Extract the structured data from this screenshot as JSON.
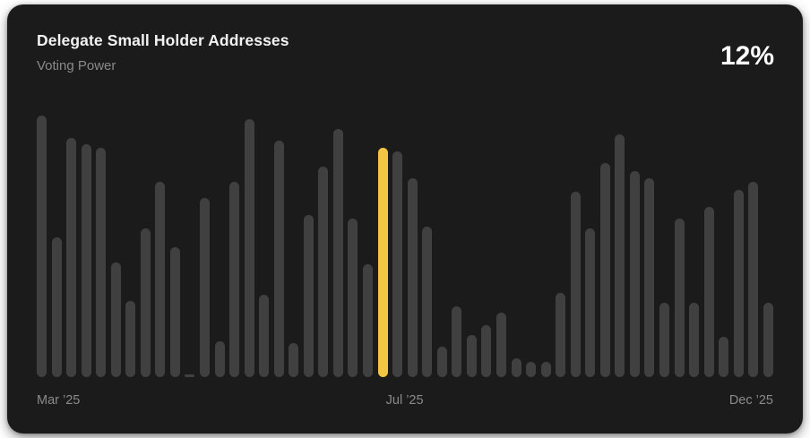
{
  "card": {
    "title": "Delegate Small Holder Addresses",
    "subtitle": "Voting Power",
    "kpi_value": "12%"
  },
  "colors": {
    "page_bg": "#FFFFFF",
    "card_bg": "#1B1B1B",
    "bar": "#404040",
    "bar_highlight": "#F2C644",
    "title_text": "#F2F2F2",
    "muted_text": "#8A8A8A",
    "kpi_text": "#FFFFFF"
  },
  "chart_data": {
    "type": "bar",
    "title": "Delegate Small Holder Addresses",
    "subtitle": "Voting Power",
    "unit": "% voting power",
    "value_axis": "hidden; bar values in %, scaled so highlighted bar = 12%",
    "ylim": [
      0,
      14
    ],
    "grid": false,
    "legend": false,
    "x_tick_labels": [
      "Mar ’25",
      "Jul ’25",
      "Dec ’25"
    ],
    "x_tick_positions": [
      "left",
      "center",
      "right"
    ],
    "highlight_index": 23,
    "highlight_value_label": "12%",
    "highlight_color": "#F2C644",
    "values": [
      13.7,
      7.3,
      12.5,
      12.2,
      12.0,
      6.0,
      4.0,
      7.8,
      10.2,
      6.8,
      0.1,
      9.4,
      1.9,
      10.2,
      13.5,
      4.3,
      12.4,
      1.8,
      8.5,
      11.0,
      13.0,
      8.3,
      5.9,
      12.0,
      11.8,
      10.4,
      7.9,
      1.6,
      3.7,
      2.2,
      2.7,
      3.4,
      1.0,
      0.8,
      0.8,
      4.4,
      9.7,
      7.8,
      11.2,
      12.7,
      10.8,
      10.4,
      3.9,
      8.3,
      3.9,
      8.9,
      2.1,
      9.8,
      10.2,
      3.9
    ]
  }
}
